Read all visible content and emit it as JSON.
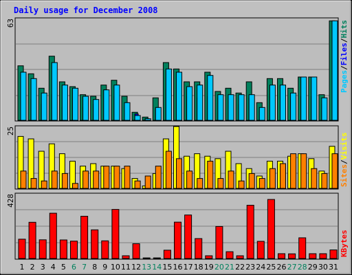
{
  "chart_data": {
    "type": "bar",
    "title": "Daily usage for December 2008",
    "days": [
      "1",
      "2",
      "3",
      "4",
      "5",
      "6",
      "7",
      "8",
      "9",
      "10",
      "11",
      "12",
      "13",
      "14",
      "15",
      "16",
      "17",
      "18",
      "19",
      "20",
      "21",
      "22",
      "23",
      "24",
      "25",
      "26",
      "27",
      "28",
      "29",
      "30",
      "31"
    ],
    "weekend_days": [
      "6",
      "7",
      "13",
      "14",
      "20",
      "21",
      "27",
      "28"
    ],
    "panels": {
      "hits_files_pages": {
        "ymax_label": "63",
        "ymax": 63,
        "series": [
          {
            "name": "Hits",
            "color": "#00805C",
            "values": [
              34,
              29,
              20,
              40,
              24,
              21,
              16,
              15,
              22,
              25,
              15,
              5,
              2,
              14,
              36,
              32,
              24,
              24,
              30,
              18,
              20,
              17,
              24,
              11,
              26,
              26,
              20,
              27,
              27,
              16,
              62
            ]
          },
          {
            "name": "Files",
            "color": "#0000FF",
            "values": [
              18,
              13,
              10,
              16,
              8,
              8,
              8,
              10,
              19,
              15,
              8,
              4,
              1,
              7,
              19,
              16,
              15,
              14,
              15,
              14,
              14,
              10,
              14,
              6,
              16,
              15,
              13,
              15,
              15,
              10,
              22
            ]
          },
          {
            "name": "Pages",
            "color": "#00C8FF",
            "values": [
              30,
              26,
              17,
              36,
              22,
              20,
              15,
              13,
              19,
              22,
              11,
              3,
              1,
              8,
              32,
              30,
              21,
              22,
              28,
              16,
              16,
              16,
              16,
              8,
              22,
              22,
              17,
              27,
              27,
              14,
              62
            ]
          }
        ],
        "legend": [
          "Pages",
          "/",
          "Files",
          "/",
          "Hits"
        ]
      },
      "visits_sites": {
        "ymax_label": "25",
        "ymax": 25,
        "series": [
          {
            "name": "Visits",
            "color": "#FFFF00",
            "values": [
              21,
              20,
              15,
              18,
              14,
              11,
              9,
              10,
              9,
              9,
              8,
              4,
              1,
              6,
              20,
              25,
              13,
              14,
              13,
              12,
              15,
              10,
              8,
              5,
              11,
              11,
              13,
              14,
              12,
              7,
              17
            ]
          },
          {
            "name": "Sites",
            "color": "#FF8000",
            "values": [
              7,
              4,
              3,
              7,
              6,
              2,
              7,
              7,
              9,
              9,
              9,
              3,
              5,
              9,
              15,
              12,
              7,
              4,
              11,
              4,
              7,
              3,
              6,
              4,
              8,
              10,
              14,
              14,
              8,
              6,
              14
            ]
          }
        ],
        "legend": [
          "Sites",
          "/",
          "Visits"
        ]
      },
      "kbytes": {
        "ymax_label": "428",
        "ymax": 428,
        "series": [
          {
            "name": "KBytes",
            "color": "#FF0000",
            "values": [
              128,
              240,
              124,
              300,
              123,
              115,
              280,
              190,
              117,
              325,
              18,
              98,
              4,
              4,
              55,
              241,
              288,
              132,
              18,
              212,
              45,
              18,
              353,
              114,
              391,
              32,
              31,
              137,
              32,
              32,
              57
            ]
          }
        ],
        "legend": [
          "KBytes"
        ]
      }
    },
    "colors": {
      "background": "#C0C0C0",
      "title": "#0000FF",
      "legend_slash": "#000000",
      "weekday_label": "#000000",
      "weekend_label": "#00805C"
    }
  }
}
